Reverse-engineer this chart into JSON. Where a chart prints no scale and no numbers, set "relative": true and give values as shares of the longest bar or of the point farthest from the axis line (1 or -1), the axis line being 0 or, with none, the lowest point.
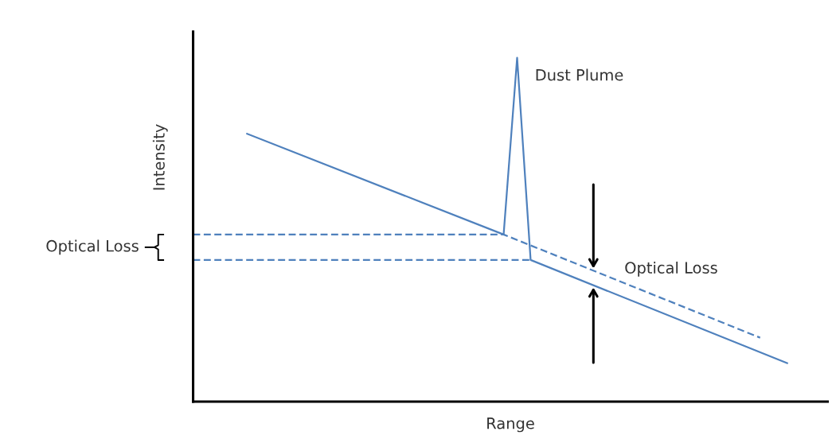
{
  "chart_data": {
    "type": "line",
    "relative": true,
    "xlabel": "Range",
    "ylabel": "Intensity",
    "tick_labels": false,
    "grid": false,
    "legend": false,
    "marker": "none",
    "categories": [
      null,
      null,
      null,
      null,
      null,
      null,
      null,
      null,
      null,
      null,
      null,
      null,
      null,
      null,
      null,
      null,
      null,
      null,
      null,
      null,
      null,
      null,
      null,
      null,
      null,
      null,
      null,
      null,
      null,
      null,
      null,
      null,
      null,
      null,
      null,
      null,
      null,
      null,
      null,
      null,
      null,
      null,
      null,
      null,
      null,
      null,
      null,
      null
    ],
    "series": [
      {
        "color": "#4f81bd",
        "line_style": "solid",
        "values": [
          null,
          null,
          null,
          null,
          0.779,
          null,
          null,
          null,
          null,
          null,
          null,
          null,
          null,
          null,
          null,
          null,
          null,
          null,
          null,
          null,
          null,
          null,
          null,
          0.486,
          1,
          0.412,
          null,
          null,
          null,
          null,
          null,
          null,
          null,
          null,
          null,
          null,
          null,
          null,
          null,
          null,
          null,
          null,
          null,
          null,
          0.112,
          null,
          null,
          null
        ]
      },
      {
        "color": "#4f81bd",
        "line_style": "dashed",
        "values": [
          0.486,
          0.486,
          0.486,
          0.486,
          0.486,
          0.486,
          0.486,
          0.486,
          0.486,
          0.486,
          0.486,
          0.486,
          0.486,
          0.486,
          0.486,
          0.486,
          0.486,
          0.486,
          0.486,
          0.486,
          0.486,
          0.486,
          0.486,
          0.486,
          null,
          null,
          null,
          null,
          null,
          null,
          null,
          null,
          null,
          null,
          null,
          null,
          null,
          null,
          null,
          null,
          null,
          null,
          0.186,
          null,
          null,
          null,
          null,
          null
        ]
      },
      {
        "color": "#4f81bd",
        "line_style": "dashed",
        "values": [
          0.412,
          0.412,
          0.412,
          0.412,
          0.412,
          0.412,
          0.412,
          0.412,
          0.412,
          0.412,
          0.412,
          0.412,
          0.412,
          0.412,
          0.412,
          0.412,
          0.412,
          0.412,
          0.412,
          0.412,
          0.412,
          0.412,
          0.412,
          0.412,
          0.412,
          0.412,
          null,
          null,
          null,
          null,
          null,
          null,
          null,
          null,
          null,
          null,
          null,
          null,
          null,
          null,
          null,
          null,
          null,
          null,
          null,
          null,
          null,
          null
        ]
      }
    ],
    "annotations": [
      "Dust Plume",
      "Optical Loss",
      "Optical Loss"
    ]
  }
}
